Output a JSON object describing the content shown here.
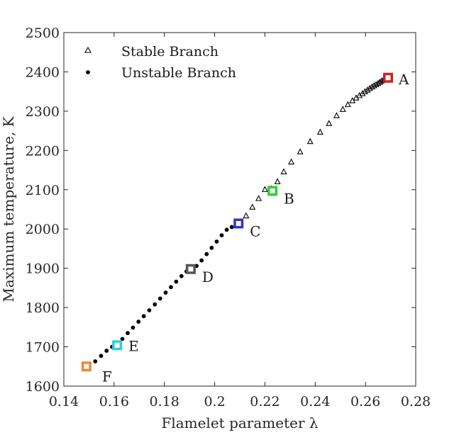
{
  "chart_data": {
    "type": "scatter",
    "title": "",
    "xlabel": "Flamelet parameter λ",
    "ylabel": "Maximum temperature, K",
    "xlim": [
      0.14,
      0.28
    ],
    "ylim": [
      1600,
      2500
    ],
    "xticks": [
      0.14,
      0.16,
      0.18,
      0.2,
      0.22,
      0.24,
      0.26,
      0.28
    ],
    "yticks": [
      1600,
      1700,
      1800,
      1900,
      2000,
      2100,
      2200,
      2300,
      2400,
      2500
    ],
    "xtick_labels": [
      "0.14",
      "0.16",
      "0.18",
      "0.2",
      "0.22",
      "0.24",
      "0.26",
      "0.28"
    ],
    "ytick_labels": [
      "1600",
      "1700",
      "1800",
      "1900",
      "2000",
      "2100",
      "2200",
      "2300",
      "2400",
      "2500"
    ],
    "grid": false,
    "legend_position": "top-left",
    "series": [
      {
        "name": "Stable Branch",
        "marker": "triangle",
        "color": "#000000",
        "x": [
          0.2125,
          0.215,
          0.2175,
          0.22,
          0.2225,
          0.225,
          0.2275,
          0.2305,
          0.234,
          0.238,
          0.242,
          0.2455,
          0.2485,
          0.251,
          0.253,
          0.2548,
          0.2563,
          0.2576,
          0.2588,
          0.2598,
          0.2608,
          0.2617,
          0.2626,
          0.2634,
          0.2642,
          0.265,
          0.2657,
          0.2664,
          0.2671,
          0.2677,
          0.2683,
          0.269
        ],
        "y": [
          2033,
          2055,
          2077,
          2100,
          2102,
          2120,
          2145,
          2170,
          2196,
          2222,
          2246,
          2268,
          2288,
          2304,
          2316,
          2326,
          2333,
          2339,
          2344,
          2349,
          2353,
          2357,
          2361,
          2364,
          2367,
          2370,
          2373,
          2376,
          2378,
          2380,
          2382,
          2385
        ]
      },
      {
        "name": "Unstable Branch",
        "marker": "dot",
        "color": "#000000",
        "x": [
          0.15,
          0.1525,
          0.1548,
          0.157,
          0.1592,
          0.1612,
          0.1633,
          0.1654,
          0.1675,
          0.1697,
          0.1718,
          0.174,
          0.1762,
          0.1783,
          0.1805,
          0.1826,
          0.1847,
          0.1868,
          0.1888,
          0.1908,
          0.1928,
          0.1948,
          0.1968,
          0.1988,
          0.2008,
          0.2028,
          0.2048,
          0.2068,
          0.209,
          0.269
        ],
        "y": [
          1648,
          1663,
          1677,
          1690,
          1700,
          1707,
          1720,
          1735,
          1749,
          1764,
          1778,
          1793,
          1808,
          1823,
          1838,
          1852,
          1866,
          1880,
          1892,
          1899,
          1906,
          1920,
          1936,
          1952,
          1968,
          1984,
          1998,
          2005,
          2013,
          2385
        ]
      }
    ],
    "annotations": [
      {
        "label": "A",
        "x": 0.269,
        "y": 2385,
        "color": "#cc2222"
      },
      {
        "label": "B",
        "x": 0.223,
        "y": 2097,
        "color": "#33cc33"
      },
      {
        "label": "C",
        "x": 0.2095,
        "y": 2014,
        "color": "#3333cc"
      },
      {
        "label": "D",
        "x": 0.1905,
        "y": 1898,
        "color": "#555555"
      },
      {
        "label": "E",
        "x": 0.1612,
        "y": 1704,
        "color": "#33ccdd"
      },
      {
        "label": "F",
        "x": 0.149,
        "y": 1650,
        "color": "#ee8833"
      }
    ]
  }
}
